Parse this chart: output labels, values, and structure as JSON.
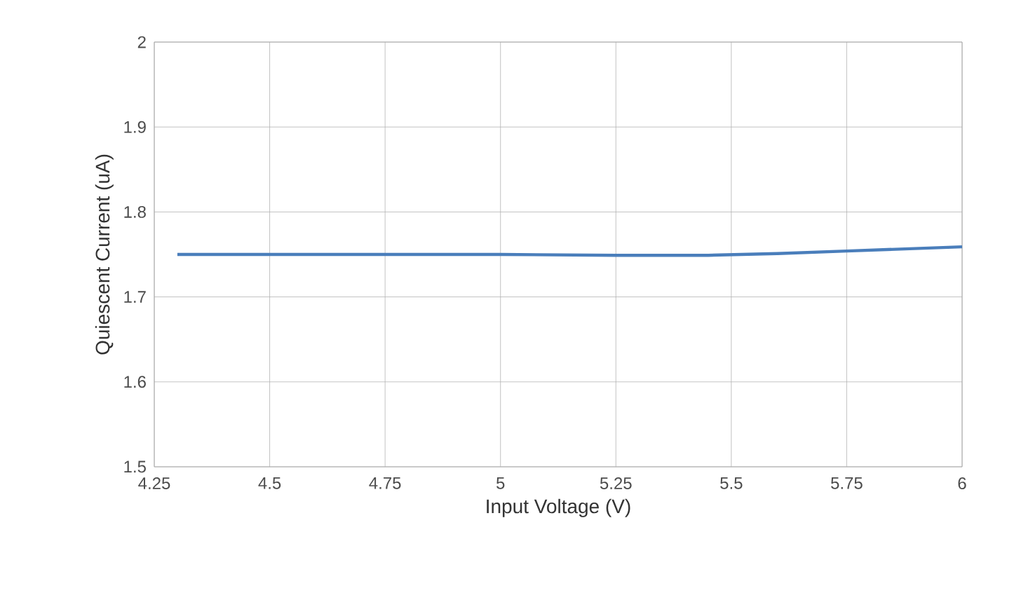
{
  "chart_data": {
    "type": "line",
    "xlabel": "Input Voltage (V)",
    "ylabel": "Quiescent Current (uA)",
    "x": [
      4.3,
      4.5,
      4.75,
      5,
      5.25,
      5.45,
      5.6,
      5.75,
      6
    ],
    "series": [
      {
        "color": "#4a7ebb",
        "values": [
          1.75,
          1.75,
          1.75,
          1.75,
          1.749,
          1.749,
          1.751,
          1.754,
          1.759
        ]
      }
    ],
    "xlim": [
      4.25,
      6
    ],
    "xticks": [
      4.25,
      4.5,
      4.75,
      5,
      5.25,
      5.5,
      5.75,
      6
    ],
    "ylim": [
      1.5,
      2
    ],
    "yticks": [
      1.5,
      1.6,
      1.7,
      1.8,
      1.9,
      2
    ],
    "grid": true,
    "marker": "none",
    "line_style": "solid"
  }
}
